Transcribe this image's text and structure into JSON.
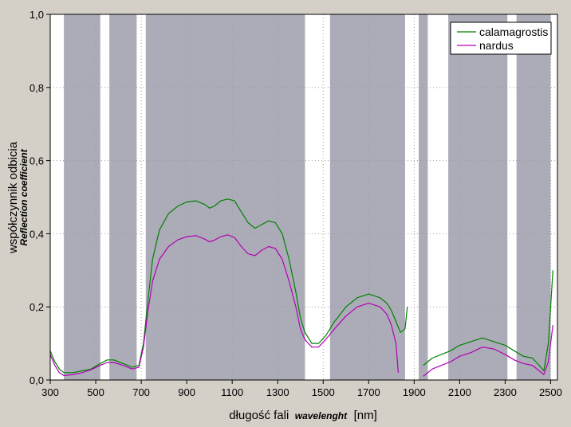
{
  "chart_data": {
    "type": "line",
    "xlabel": "długość fali",
    "xlabel_en": "wavelenght",
    "xunit": "[nm]",
    "ylabel": "współczynnik odbicia",
    "ylabel_en": "Reflection coefficient",
    "xlim": [
      300,
      2530
    ],
    "ylim": [
      0,
      1
    ],
    "x_ticks": [
      "300",
      "500",
      "700",
      "900",
      "1100",
      "1300",
      "1500",
      "1700",
      "1900",
      "2100",
      "2300",
      "2500"
    ],
    "y_ticks": [
      "0,0",
      "0,2",
      "0,4",
      "0,6",
      "0,8",
      "1,0"
    ],
    "grid": true,
    "legend_position": "top-right",
    "shaded_bands": [
      [
        360,
        520
      ],
      [
        560,
        680
      ],
      [
        720,
        1420
      ],
      [
        1530,
        1860
      ],
      [
        1920,
        1960
      ],
      [
        2050,
        2310
      ],
      [
        2350,
        2500
      ]
    ],
    "series": [
      {
        "name": "calamagrostis",
        "color": "#008000",
        "segments": [
          [
            [
              300,
              0.08
            ],
            [
              320,
              0.05
            ],
            [
              340,
              0.03
            ],
            [
              360,
              0.02
            ],
            [
              400,
              0.02
            ],
            [
              440,
              0.025
            ],
            [
              480,
              0.03
            ],
            [
              520,
              0.045
            ],
            [
              550,
              0.055
            ],
            [
              580,
              0.055
            ],
            [
              620,
              0.045
            ],
            [
              660,
              0.035
            ],
            [
              690,
              0.04
            ],
            [
              710,
              0.1
            ],
            [
              730,
              0.22
            ],
            [
              750,
              0.33
            ],
            [
              780,
              0.41
            ],
            [
              820,
              0.455
            ],
            [
              860,
              0.475
            ],
            [
              900,
              0.487
            ],
            [
              940,
              0.49
            ],
            [
              980,
              0.48
            ],
            [
              1000,
              0.47
            ],
            [
              1020,
              0.475
            ],
            [
              1050,
              0.49
            ],
            [
              1080,
              0.495
            ],
            [
              1110,
              0.49
            ],
            [
              1140,
              0.46
            ],
            [
              1170,
              0.43
            ],
            [
              1200,
              0.415
            ],
            [
              1230,
              0.425
            ],
            [
              1260,
              0.435
            ],
            [
              1290,
              0.43
            ],
            [
              1320,
              0.4
            ],
            [
              1350,
              0.33
            ],
            [
              1380,
              0.24
            ],
            [
              1400,
              0.17
            ],
            [
              1420,
              0.13
            ],
            [
              1450,
              0.1
            ],
            [
              1480,
              0.1
            ],
            [
              1510,
              0.12
            ],
            [
              1550,
              0.16
            ],
            [
              1600,
              0.2
            ],
            [
              1650,
              0.225
            ],
            [
              1700,
              0.235
            ],
            [
              1750,
              0.225
            ],
            [
              1780,
              0.21
            ],
            [
              1800,
              0.19
            ],
            [
              1820,
              0.16
            ],
            [
              1840,
              0.13
            ],
            [
              1860,
              0.14
            ],
            [
              1870,
              0.2
            ]
          ],
          [
            [
              1940,
              0.04
            ],
            [
              1980,
              0.06
            ],
            [
              2020,
              0.07
            ],
            [
              2060,
              0.08
            ],
            [
              2100,
              0.095
            ],
            [
              2150,
              0.105
            ],
            [
              2200,
              0.115
            ],
            [
              2250,
              0.105
            ],
            [
              2300,
              0.095
            ],
            [
              2340,
              0.08
            ],
            [
              2380,
              0.065
            ],
            [
              2420,
              0.06
            ],
            [
              2450,
              0.04
            ],
            [
              2470,
              0.025
            ],
            [
              2490,
              0.1
            ],
            [
              2510,
              0.3
            ]
          ]
        ]
      },
      {
        "name": "nardus",
        "color": "#b400b4",
        "segments": [
          [
            [
              300,
              0.07
            ],
            [
              320,
              0.04
            ],
            [
              340,
              0.02
            ],
            [
              360,
              0.012
            ],
            [
              400,
              0.015
            ],
            [
              440,
              0.02
            ],
            [
              480,
              0.028
            ],
            [
              520,
              0.04
            ],
            [
              550,
              0.048
            ],
            [
              580,
              0.048
            ],
            [
              620,
              0.04
            ],
            [
              660,
              0.03
            ],
            [
              690,
              0.035
            ],
            [
              710,
              0.09
            ],
            [
              730,
              0.19
            ],
            [
              750,
              0.27
            ],
            [
              780,
              0.33
            ],
            [
              820,
              0.365
            ],
            [
              860,
              0.383
            ],
            [
              900,
              0.392
            ],
            [
              940,
              0.395
            ],
            [
              980,
              0.385
            ],
            [
              1000,
              0.378
            ],
            [
              1020,
              0.382
            ],
            [
              1050,
              0.392
            ],
            [
              1080,
              0.397
            ],
            [
              1110,
              0.39
            ],
            [
              1140,
              0.365
            ],
            [
              1170,
              0.345
            ],
            [
              1200,
              0.34
            ],
            [
              1230,
              0.355
            ],
            [
              1260,
              0.365
            ],
            [
              1290,
              0.36
            ],
            [
              1320,
              0.33
            ],
            [
              1350,
              0.27
            ],
            [
              1380,
              0.2
            ],
            [
              1400,
              0.14
            ],
            [
              1420,
              0.11
            ],
            [
              1450,
              0.09
            ],
            [
              1480,
              0.09
            ],
            [
              1510,
              0.11
            ],
            [
              1550,
              0.14
            ],
            [
              1600,
              0.175
            ],
            [
              1650,
              0.2
            ],
            [
              1700,
              0.21
            ],
            [
              1750,
              0.2
            ],
            [
              1780,
              0.18
            ],
            [
              1800,
              0.15
            ],
            [
              1820,
              0.1
            ],
            [
              1830,
              0.02
            ]
          ],
          [
            [
              1940,
              0.01
            ],
            [
              1980,
              0.03
            ],
            [
              2020,
              0.04
            ],
            [
              2060,
              0.05
            ],
            [
              2100,
              0.065
            ],
            [
              2150,
              0.075
            ],
            [
              2200,
              0.09
            ],
            [
              2250,
              0.085
            ],
            [
              2300,
              0.07
            ],
            [
              2340,
              0.055
            ],
            [
              2380,
              0.045
            ],
            [
              2420,
              0.04
            ],
            [
              2450,
              0.025
            ],
            [
              2470,
              0.015
            ],
            [
              2490,
              0.05
            ],
            [
              2510,
              0.15
            ]
          ]
        ]
      }
    ]
  }
}
